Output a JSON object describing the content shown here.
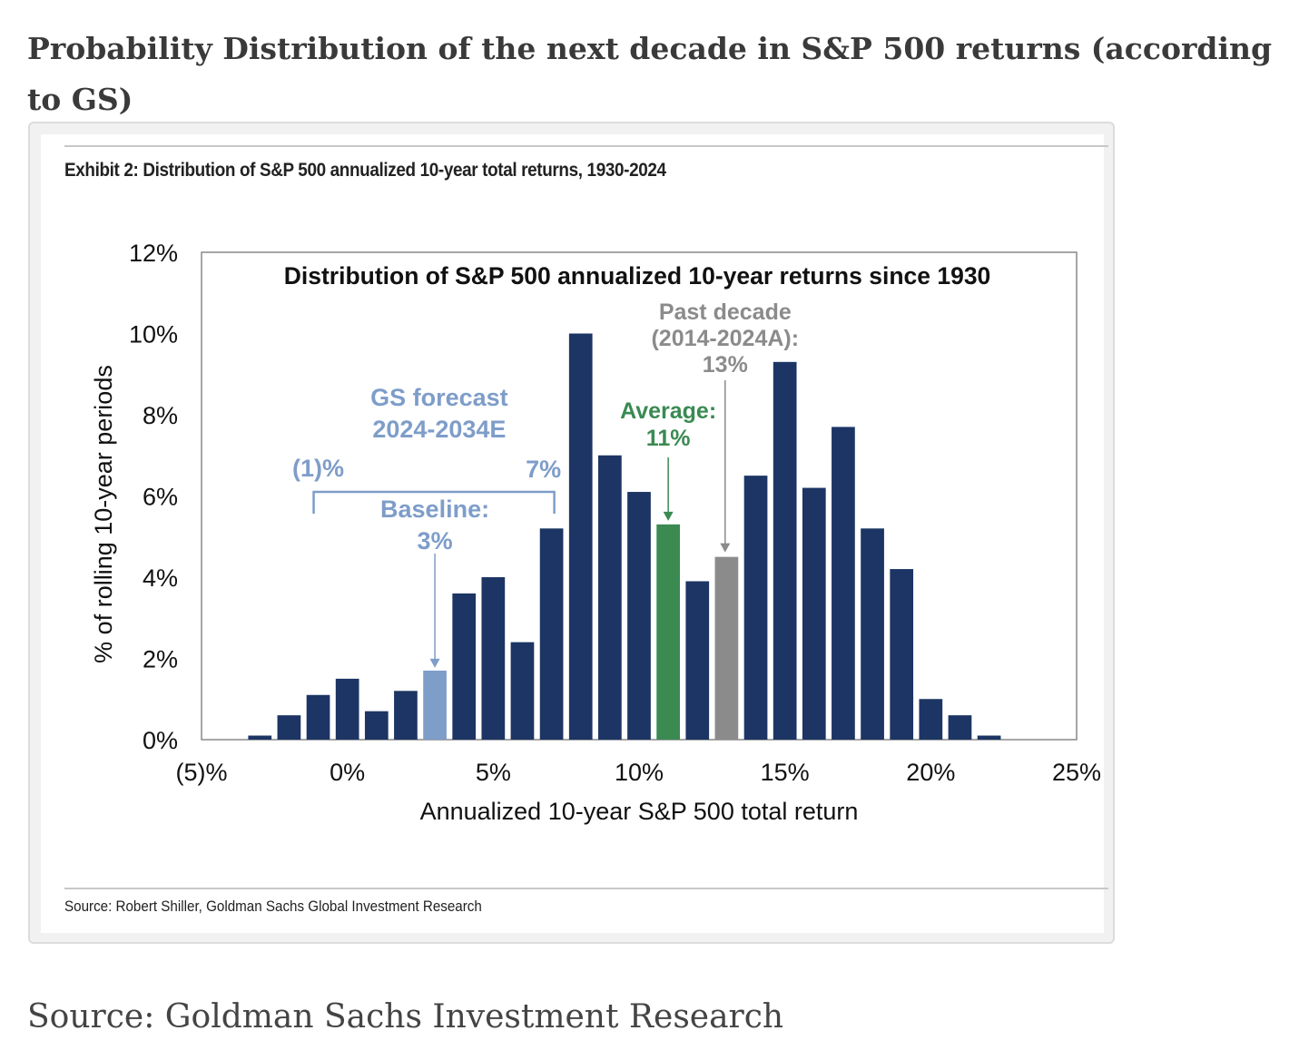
{
  "page": {
    "title": "Probability Distribution of the next decade in S&P 500 returns (according to GS)",
    "footer_source": "Source: Goldman Sachs Investment Research"
  },
  "figure": {
    "exhibit_title": "Exhibit 2: Distribution of S&P 500 annualized 10-year total returns, 1930-2024",
    "source_note": "Source: Robert Shiller, Goldman Sachs Global Investment Research"
  },
  "chart_data": {
    "type": "bar",
    "title": "Distribution of S&P 500 annualized 10-year returns since 1930",
    "xlabel": "Annualized 10-year S&P 500 total return",
    "ylabel": "% of rolling 10-year periods",
    "xlim": [
      -5,
      25
    ],
    "ylim": [
      0,
      12
    ],
    "x_tick_labels": [
      "(5)%",
      "0%",
      "5%",
      "10%",
      "15%",
      "20%",
      "25%"
    ],
    "x_tick_values": [
      -5,
      0,
      5,
      10,
      15,
      20,
      25
    ],
    "y_tick_labels": [
      "0%",
      "2%",
      "4%",
      "6%",
      "8%",
      "10%",
      "12%"
    ],
    "y_tick_values": [
      0,
      2,
      4,
      6,
      8,
      10,
      12
    ],
    "grid": false,
    "bar_width": 0.8,
    "bars": [
      {
        "x": -3,
        "value": 0.1,
        "highlight": "default"
      },
      {
        "x": -2,
        "value": 0.6,
        "highlight": "default"
      },
      {
        "x": -1,
        "value": 1.1,
        "highlight": "default"
      },
      {
        "x": 0,
        "value": 1.5,
        "highlight": "default"
      },
      {
        "x": 1,
        "value": 0.7,
        "highlight": "default"
      },
      {
        "x": 2,
        "value": 1.2,
        "highlight": "default"
      },
      {
        "x": 3,
        "value": 1.7,
        "highlight": "baseline"
      },
      {
        "x": 4,
        "value": 3.6,
        "highlight": "default"
      },
      {
        "x": 5,
        "value": 4.0,
        "highlight": "default"
      },
      {
        "x": 6,
        "value": 2.4,
        "highlight": "default"
      },
      {
        "x": 7,
        "value": 5.2,
        "highlight": "default"
      },
      {
        "x": 8,
        "value": 10.0,
        "highlight": "default"
      },
      {
        "x": 9,
        "value": 7.0,
        "highlight": "default"
      },
      {
        "x": 10,
        "value": 6.1,
        "highlight": "default"
      },
      {
        "x": 11,
        "value": 5.3,
        "highlight": "average"
      },
      {
        "x": 12,
        "value": 3.9,
        "highlight": "default"
      },
      {
        "x": 13,
        "value": 4.5,
        "highlight": "past_decade"
      },
      {
        "x": 14,
        "value": 6.5,
        "highlight": "default"
      },
      {
        "x": 15,
        "value": 9.3,
        "highlight": "default"
      },
      {
        "x": 16,
        "value": 6.2,
        "highlight": "default"
      },
      {
        "x": 17,
        "value": 7.7,
        "highlight": "default"
      },
      {
        "x": 18,
        "value": 5.2,
        "highlight": "default"
      },
      {
        "x": 19,
        "value": 4.2,
        "highlight": "default"
      },
      {
        "x": 20,
        "value": 1.0,
        "highlight": "default"
      },
      {
        "x": 21,
        "value": 0.6,
        "highlight": "default"
      },
      {
        "x": 22,
        "value": 0.1,
        "highlight": "default"
      }
    ],
    "colors": {
      "default": "#1c3564",
      "baseline": "#7e9dc9",
      "average": "#3a8a52",
      "past_decade": "#8b8b8b",
      "gs_annotation": "#7e9dc9",
      "average_annotation": "#3a8a52",
      "past_annotation": "#8b8b8b",
      "axis": "#888888",
      "text": "#111111"
    },
    "annotations": {
      "gs_forecast": {
        "lines": [
          "GS forecast",
          "2024-2034E"
        ],
        "range": [
          -1,
          7
        ]
      },
      "range_low": {
        "text": "(1)%",
        "x": -1
      },
      "range_high": {
        "text": "7%",
        "x": 7
      },
      "baseline": {
        "lines": [
          "Baseline:",
          "3%"
        ],
        "x": 3
      },
      "average": {
        "lines": [
          "Average:",
          "11%"
        ],
        "x": 11
      },
      "past_decade": {
        "lines": [
          "Past decade",
          "(2014-2024A):",
          "13%"
        ],
        "x": 13
      }
    }
  }
}
